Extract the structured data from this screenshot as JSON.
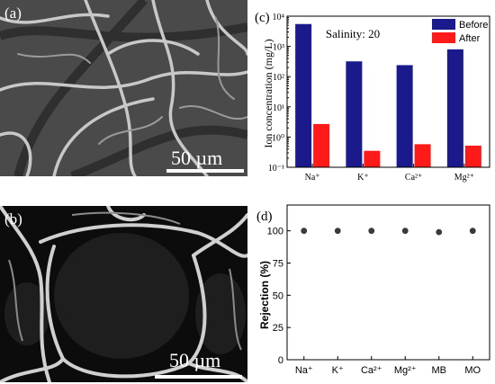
{
  "panels": {
    "a": {
      "label": "(a)",
      "scale_bar": "50 µm"
    },
    "b": {
      "label": "(b)",
      "scale_bar": "50 µm"
    },
    "c": {
      "label": "(c)"
    },
    "d": {
      "label": "(d)"
    }
  },
  "colors": {
    "before": "#1a1a8c",
    "after": "#ff1a1a",
    "marker": "#3a3a3a"
  },
  "chart_data": [
    {
      "id": "c",
      "type": "bar",
      "annotation": "Salinity: 20",
      "ylabel": "Ion concentration (mg/L)",
      "yscale": "log",
      "ylim": [
        0.1,
        10000
      ],
      "ytick_labels": [
        "10⁻¹",
        "10⁰",
        "10¹",
        "10²",
        "10³",
        "10⁴"
      ],
      "categories": [
        "Na⁺",
        "K⁺",
        "Ca²⁺",
        "Mg²⁺"
      ],
      "series": [
        {
          "name": "Before",
          "values": [
            5500,
            320,
            240,
            800
          ]
        },
        {
          "name": "After",
          "values": [
            2.7,
            0.35,
            0.58,
            0.52
          ]
        }
      ],
      "legend": "top-right"
    },
    {
      "id": "d",
      "type": "scatter",
      "ylabel": "Rejection (%)",
      "ylim": [
        0,
        120
      ],
      "yticks": [
        0,
        25,
        50,
        75,
        100
      ],
      "categories": [
        "Na⁺",
        "K⁺",
        "Ca²⁺",
        "Mg²⁺",
        "MB",
        "MO"
      ],
      "values": [
        100,
        100,
        100,
        100,
        99,
        100
      ]
    }
  ]
}
